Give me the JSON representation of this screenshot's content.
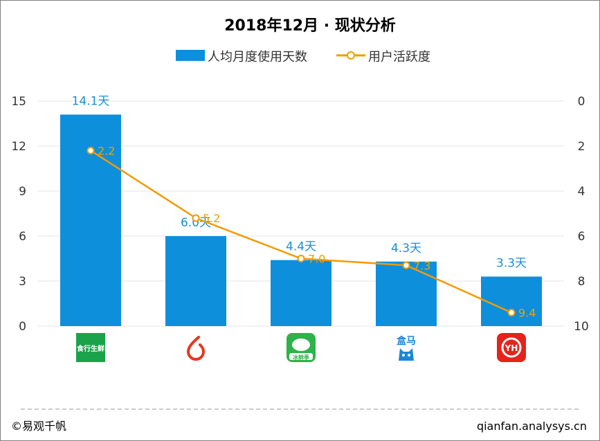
{
  "title": "2018年12月 · 现状分析",
  "legend": {
    "bar_label": "人均月度使用天数",
    "line_label": "用户活跃度"
  },
  "colors": {
    "bar": "#0e8fdb",
    "line": "#f59a00",
    "bar_label": "#1a8fd6",
    "line_label": "#f0a000"
  },
  "footer": {
    "copyright": "©易观千帆",
    "source": "qianfan.analysys.cn"
  },
  "app_icons": [
    {
      "name": "shihang-shengxian-logo",
      "text": "食行生鲜",
      "color": "#1aa34a"
    },
    {
      "name": "red-flame-logo",
      "text": "",
      "color": "#e8361b"
    },
    {
      "name": "bingxiaoxian-logo",
      "text": "冰鲜季",
      "color": "#2db34a"
    },
    {
      "name": "hema-logo",
      "text": "盒马",
      "color": "#1a88d8"
    },
    {
      "name": "yonghui-logo",
      "text": "YH",
      "color": "#e5231b"
    }
  ],
  "chart_data": {
    "type": "bar",
    "categories": [
      "食行生鲜",
      "",
      "",
      "盒马",
      "YH"
    ],
    "series": [
      {
        "name": "人均月度使用天数",
        "type": "bar",
        "axis": "left",
        "values": [
          14.1,
          6.0,
          4.4,
          4.3,
          3.3
        ],
        "labels": [
          "14.1天",
          "6.0天",
          "4.4天",
          "4.3天",
          "3.3天"
        ]
      },
      {
        "name": "用户活跃度",
        "type": "line",
        "axis": "right",
        "values": [
          2.2,
          5.2,
          7.0,
          7.3,
          9.4
        ],
        "labels": [
          "2.2",
          "5.2",
          "7.0",
          "7.3",
          "9.4"
        ]
      }
    ],
    "y_left": {
      "min": 0,
      "max": 15,
      "ticks": [
        0,
        3,
        6,
        9,
        12,
        15
      ]
    },
    "y_right": {
      "min": 0,
      "max": 10,
      "inverted": true,
      "ticks": [
        0,
        2,
        4,
        6,
        8,
        10
      ]
    },
    "grid": true,
    "legend_position": "top"
  }
}
